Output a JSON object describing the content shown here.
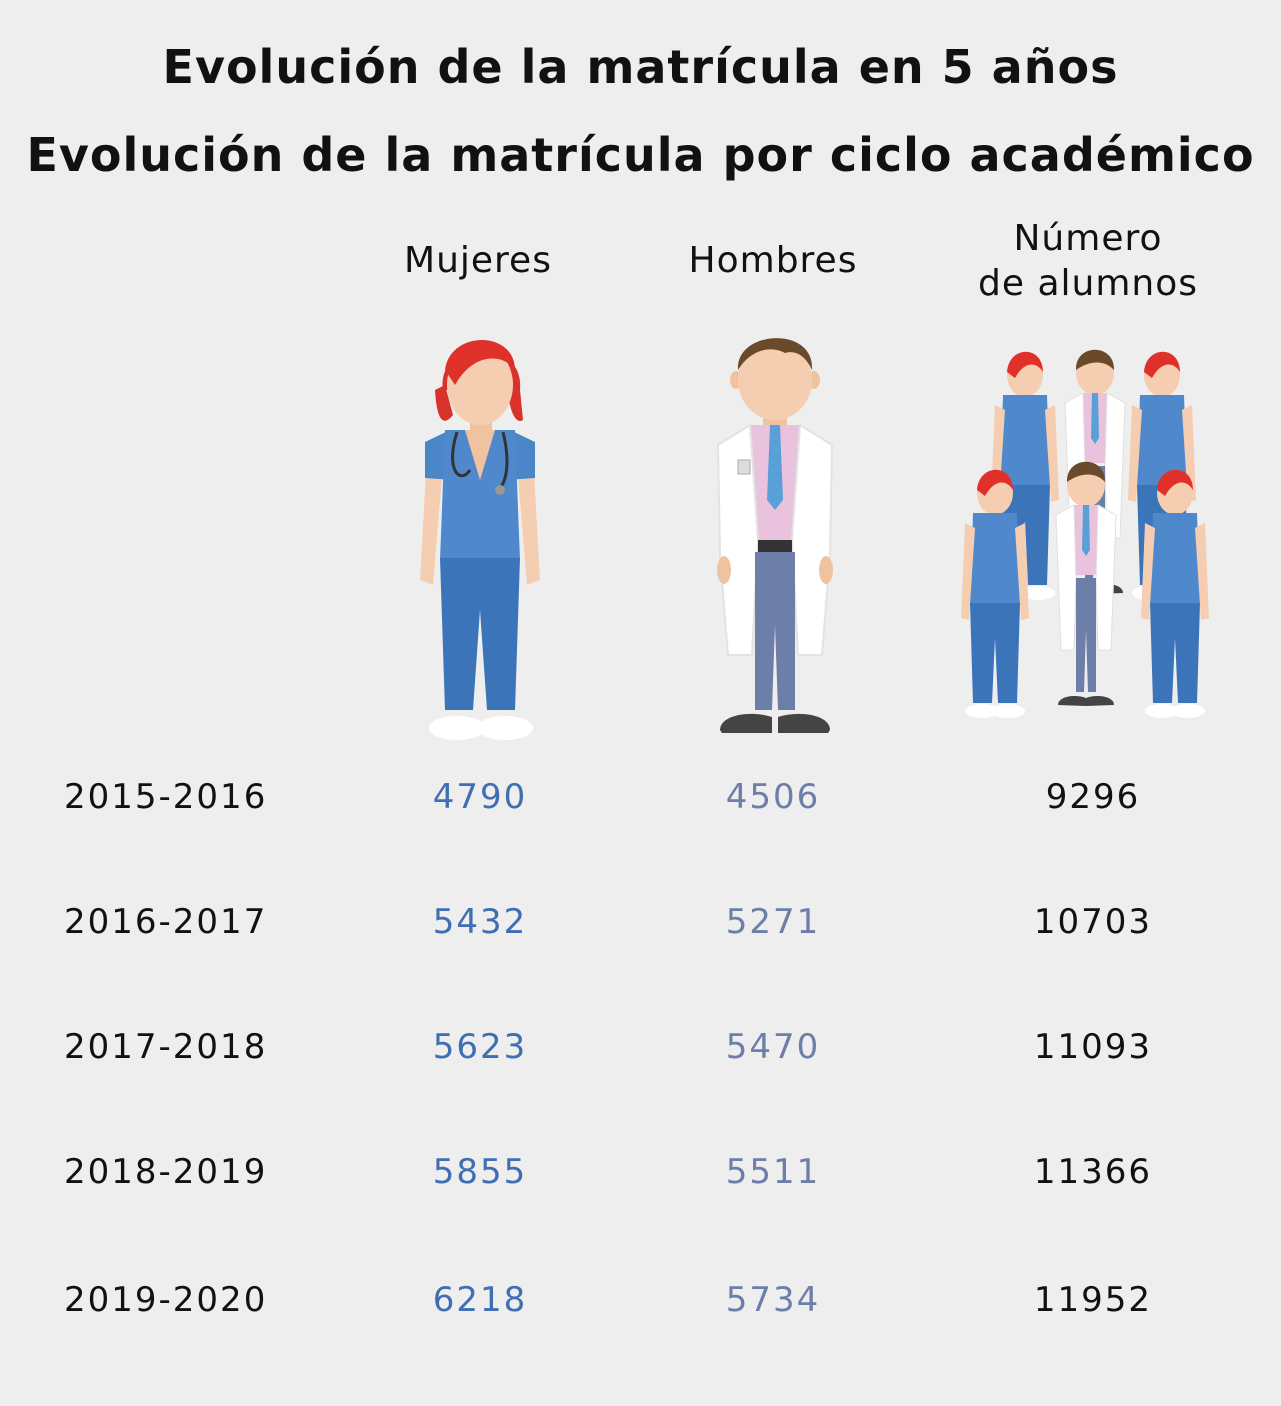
{
  "title": "Evolución de la matrícula en 5 años",
  "subtitle": "Evolución de la matrícula por ciclo académico",
  "columns": {
    "women": "Mujeres",
    "men": "Hombres",
    "total": "Número\nde alumnos"
  },
  "colors": {
    "women": "#3f6fb3",
    "men": "#6d7fa8",
    "total": "#111111",
    "scrubs": "#4a86c8",
    "hair_women": "#e0302a",
    "hair_men": "#6b4a2b"
  },
  "icons": [
    "female-doctor-icon",
    "male-doctor-icon",
    "group-doctors-icon"
  ],
  "chart_data": {
    "type": "table",
    "title": "Evolución de la matrícula en 5 años",
    "subtitle": "Evolución de la matrícula por ciclo académico",
    "columns": [
      "",
      "Mujeres",
      "Hombres",
      "Número de alumnos"
    ],
    "rows": [
      {
        "year": "2015-2016",
        "women": "4790",
        "men": "4506",
        "total": "9296"
      },
      {
        "year": "2016-2017",
        "women": "5432",
        "men": "5271",
        "total": "10703"
      },
      {
        "year": "2017-2018",
        "women": "5623",
        "men": "5470",
        "total": "11093"
      },
      {
        "year": "2018-2019",
        "women": "5855",
        "men": "5511",
        "total": "11366"
      },
      {
        "year": "2019-2020",
        "women": "6218",
        "men": "5734",
        "total": "11952"
      }
    ]
  }
}
